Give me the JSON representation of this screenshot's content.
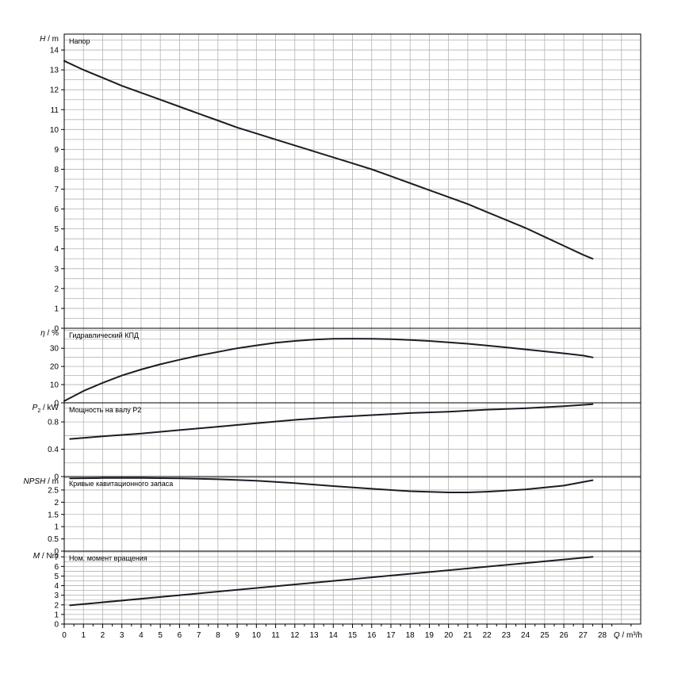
{
  "chart_data": {
    "type": "line",
    "x_axis": {
      "label_var": "Q",
      "label_unit": "m³/h",
      "range": [
        0,
        30
      ],
      "tick_labels": [
        "0",
        "1",
        "2",
        "3",
        "4",
        "5",
        "6",
        "7",
        "8",
        "9",
        "10",
        "11",
        "12",
        "13",
        "14",
        "15",
        "16",
        "17",
        "18",
        "19",
        "20",
        "21",
        "22",
        "23",
        "24",
        "25",
        "26",
        "27",
        "28"
      ]
    },
    "panels": [
      {
        "id": "head",
        "title": "Напор",
        "y_var": "H",
        "y_unit": "m",
        "ylim": [
          0,
          14.8
        ],
        "y_ticks": [
          0,
          1,
          2,
          3,
          4,
          5,
          6,
          7,
          8,
          9,
          10,
          11,
          12,
          13,
          14
        ],
        "y_tick_labels": [
          "0",
          "1",
          "2",
          "3",
          "4",
          "5",
          "6",
          "7",
          "8",
          "9",
          "10",
          "11",
          "12",
          "13",
          "14"
        ],
        "grid_step": 0.5,
        "series": [
          {
            "x": [
              0,
              1,
              2,
              3,
              4,
              5,
              6,
              7,
              8,
              9,
              10,
              11,
              12,
              13,
              14,
              15,
              16,
              17,
              18,
              19,
              20,
              21,
              22,
              23,
              24,
              25,
              26,
              27,
              27.5
            ],
            "y": [
              13.45,
              13.0,
              12.6,
              12.2,
              11.85,
              11.5,
              11.15,
              10.8,
              10.45,
              10.1,
              9.8,
              9.5,
              9.2,
              8.9,
              8.6,
              8.3,
              8.0,
              7.65,
              7.3,
              6.95,
              6.6,
              6.25,
              5.85,
              5.45,
              5.05,
              4.6,
              4.15,
              3.7,
              3.5
            ]
          }
        ]
      },
      {
        "id": "efficiency",
        "title": "Гидравлический КПД",
        "y_var": "η",
        "y_unit": "%",
        "ylim": [
          0,
          41
        ],
        "y_ticks": [
          0,
          10,
          20,
          30
        ],
        "y_tick_labels": [
          "0",
          "10",
          "20",
          "30"
        ],
        "grid_step": 5,
        "series": [
          {
            "x": [
              0,
              1,
              2,
              3,
              4,
              5,
              6,
              7,
              8,
              9,
              10,
              11,
              12,
              13,
              14,
              15,
              16,
              17,
              18,
              19,
              20,
              21,
              22,
              23,
              24,
              25,
              26,
              27,
              27.5
            ],
            "y": [
              1,
              6.5,
              11,
              15,
              18.3,
              21.2,
              23.7,
              26,
              28,
              30,
              31.6,
              33,
              34,
              34.8,
              35.2,
              35.3,
              35.2,
              35,
              34.6,
              34,
              33.3,
              32.5,
              31.5,
              30.5,
              29.4,
              28.3,
              27.2,
              26,
              25
            ]
          }
        ]
      },
      {
        "id": "power",
        "title": "Мощность на валу P2",
        "y_var": "P",
        "y_sub": "2",
        "y_unit": "kW",
        "ylim": [
          0,
          1.08
        ],
        "y_ticks": [
          0,
          0.4,
          0.8
        ],
        "y_tick_labels": [
          "0",
          "0.4",
          "0.8"
        ],
        "grid_step": 0.2,
        "series": [
          {
            "x": [
              0.3,
              2,
              4,
              6,
              8,
              10,
              12,
              14,
              16,
              18,
              20,
              22,
              24,
              26,
              27.5
            ],
            "y": [
              0.55,
              0.59,
              0.63,
              0.68,
              0.73,
              0.78,
              0.83,
              0.87,
              0.9,
              0.93,
              0.95,
              0.98,
              1.0,
              1.03,
              1.06
            ]
          }
        ]
      },
      {
        "id": "npsh",
        "title": "Кривые кавитационного запаса",
        "y_var": "NPSH",
        "y_unit": "m",
        "ylim": [
          0,
          3.05
        ],
        "y_ticks": [
          0,
          0.5,
          1,
          1.5,
          2,
          2.5
        ],
        "y_tick_labels": [
          "0",
          "0.5",
          "1",
          "1.5",
          "2",
          "2.5"
        ],
        "grid_step": 0.5,
        "series": [
          {
            "x": [
              0.3,
              2,
              4,
              6,
              8,
              10,
              12,
              14,
              16,
              18,
              20,
              21,
              22,
              24,
              26,
              27.5
            ],
            "y": [
              2.98,
              2.99,
              2.99,
              2.98,
              2.94,
              2.88,
              2.78,
              2.66,
              2.55,
              2.45,
              2.4,
              2.4,
              2.43,
              2.52,
              2.68,
              2.9
            ]
          }
        ]
      },
      {
        "id": "torque",
        "title": "Ном. момент вращения",
        "y_var": "M",
        "y_unit": "Nm",
        "ylim": [
          0,
          7.6
        ],
        "y_ticks": [
          0,
          1,
          2,
          3,
          4,
          5,
          6,
          7
        ],
        "y_tick_labels": [
          "0",
          "1",
          "2",
          "3",
          "4",
          "5",
          "6",
          "7"
        ],
        "grid_step": 0.5,
        "series": [
          {
            "x": [
              0.3,
              27.5
            ],
            "y": [
              1.95,
              7.0
            ]
          }
        ]
      }
    ],
    "grid": true,
    "legend": "none"
  }
}
